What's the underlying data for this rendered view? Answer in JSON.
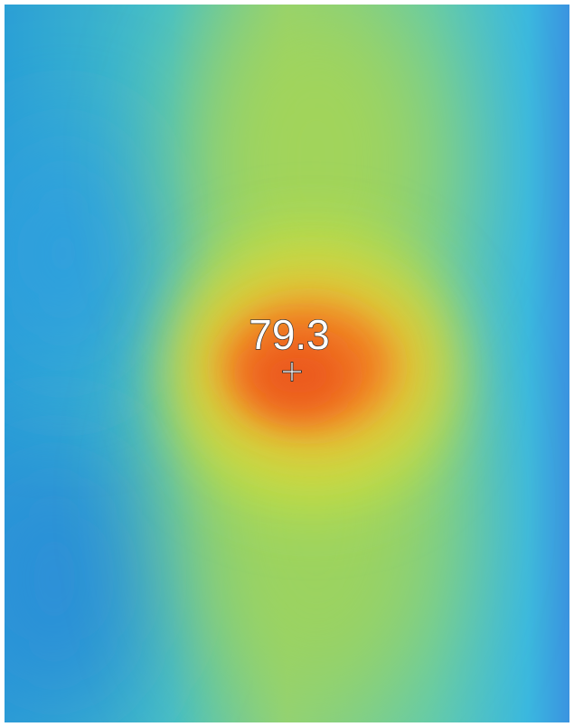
{
  "reading": {
    "temperature": "79.3"
  }
}
